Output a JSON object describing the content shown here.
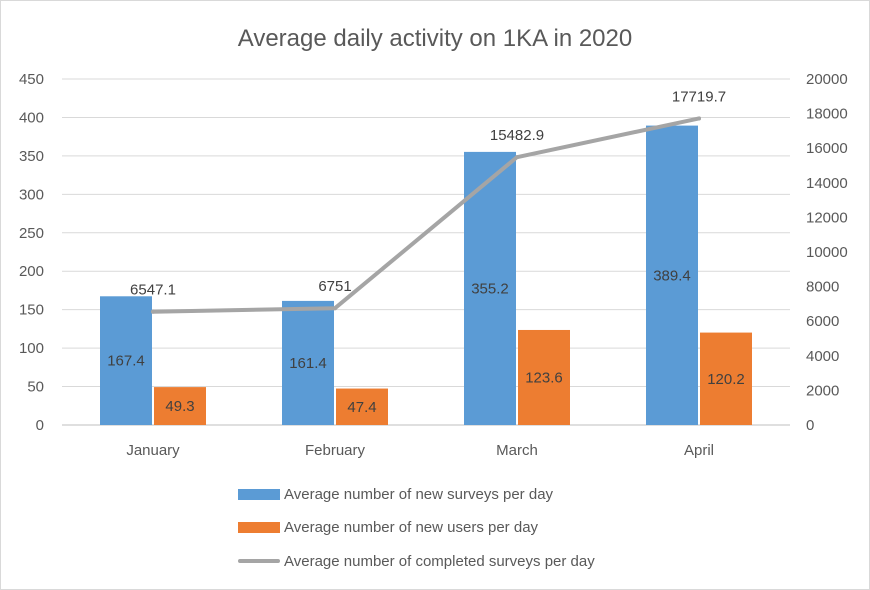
{
  "chart_data": {
    "type": "bar",
    "title": "Average daily activity on 1KA in 2020",
    "categories": [
      "January",
      "February",
      "March",
      "April"
    ],
    "series": [
      {
        "name": "Average number of new surveys per day",
        "type": "bar",
        "axis": "left",
        "color": "#5b9bd5",
        "values": [
          167.4,
          161.4,
          355.2,
          389.4
        ]
      },
      {
        "name": "Average number of new users per day",
        "type": "bar",
        "axis": "left",
        "color": "#ed7d31",
        "values": [
          49.3,
          47.4,
          123.6,
          120.2
        ]
      },
      {
        "name": "Average number of completed surveys per day",
        "type": "line",
        "axis": "right",
        "color": "#a5a5a5",
        "values": [
          6547.1,
          6751,
          15482.9,
          17719.7
        ]
      }
    ],
    "data_labels": {
      "surveys": [
        "167.4",
        "161.4",
        "355.2",
        "389.4"
      ],
      "users": [
        "49.3",
        "47.4",
        "123.6",
        "120.2"
      ],
      "completed": [
        "6547.1",
        "6751",
        "15482.9",
        "17719.7"
      ]
    },
    "y_left": {
      "lim": [
        0,
        450
      ],
      "step": 50,
      "ticks": [
        "0",
        "50",
        "100",
        "150",
        "200",
        "250",
        "300",
        "350",
        "400",
        "450"
      ]
    },
    "y_right": {
      "lim": [
        0,
        20000
      ],
      "step": 2000,
      "ticks": [
        "0",
        "2000",
        "4000",
        "6000",
        "8000",
        "10000",
        "12000",
        "14000",
        "16000",
        "18000",
        "20000"
      ]
    },
    "grid": true,
    "legend_position": "bottom"
  }
}
